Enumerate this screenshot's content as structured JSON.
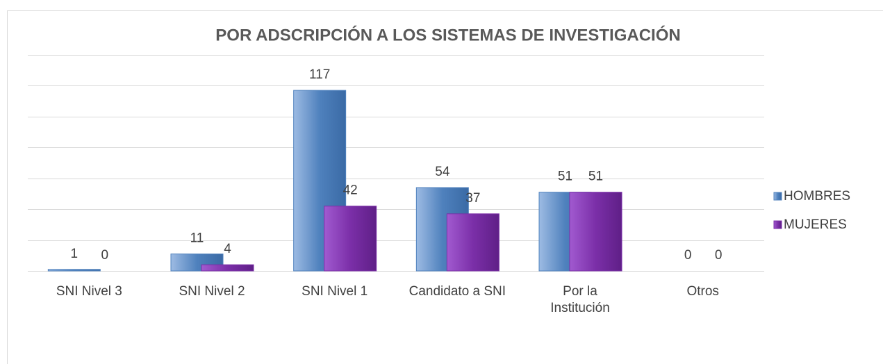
{
  "chart_data": {
    "type": "bar",
    "title": "POR ADSCRIPCIÓN A LOS SISTEMAS DE INVESTIGACIÓN",
    "categories": [
      "SNI Nivel 3",
      "SNI Nivel 2",
      "SNI Nivel 1",
      "Candidato a SNI",
      "Por la Institución",
      "Otros"
    ],
    "series": [
      {
        "name": "HOMBRES",
        "color": "#4f81bd",
        "values": [
          1,
          11,
          117,
          54,
          51,
          0
        ]
      },
      {
        "name": "MUJERES",
        "color": "#7b2fa8",
        "values": [
          0,
          4,
          42,
          37,
          51,
          0
        ]
      }
    ],
    "ylim": [
      0,
      140
    ],
    "yticks": [
      0,
      20,
      40,
      60,
      80,
      100,
      120,
      140
    ],
    "grid": true,
    "legend": "right"
  }
}
